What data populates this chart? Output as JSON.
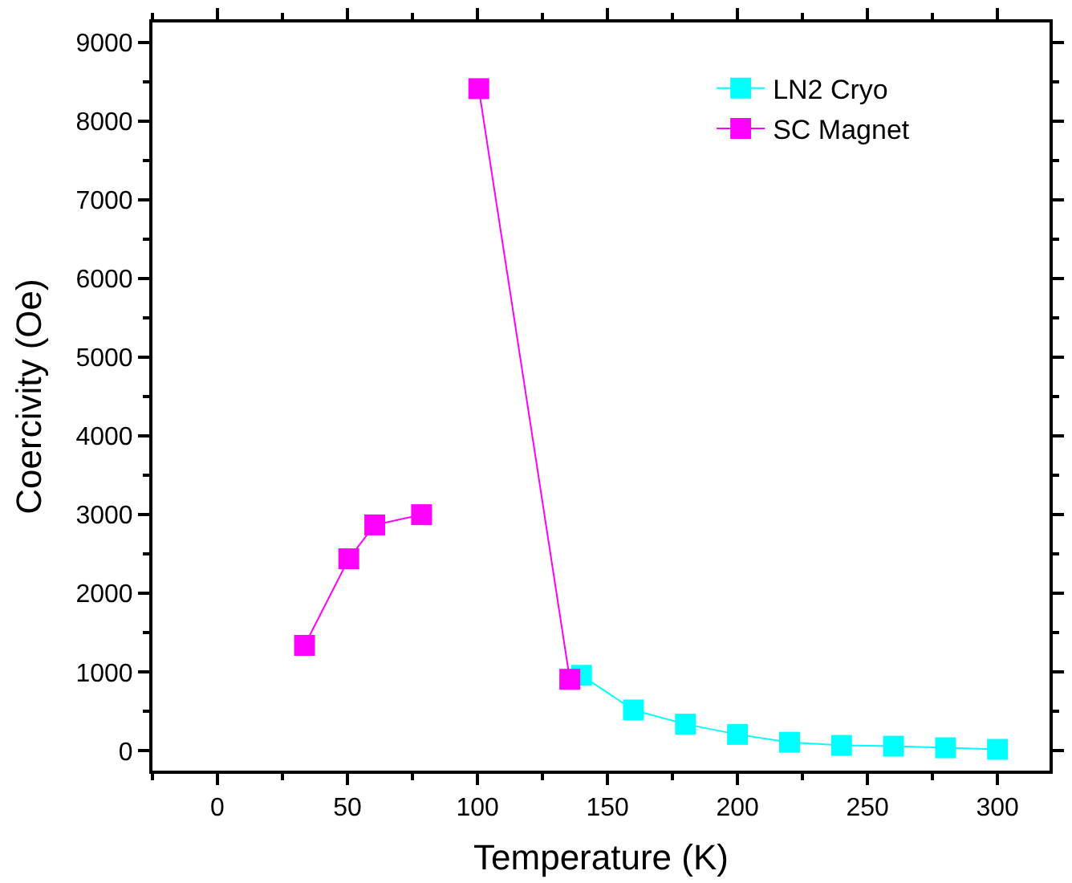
{
  "chart_data": {
    "type": "line",
    "xlabel": "Temperature (K)",
    "ylabel": "Coercivity (Oe)",
    "xlim": [
      -25,
      320
    ],
    "xticks": [
      0,
      50,
      100,
      150,
      200,
      250,
      300
    ],
    "ylim": [
      -250,
      9250
    ],
    "yticks": [
      0,
      1000,
      2000,
      3000,
      4000,
      5000,
      6000,
      7000,
      8000,
      9000
    ],
    "legend": "top right",
    "marker": "square",
    "line_style": "solid",
    "series": [
      {
        "name": "LN2 Cryo",
        "color": "#00ffff",
        "x": [
          140,
          160,
          180,
          200,
          220,
          240,
          260,
          280,
          300
        ],
        "values": [
          960,
          520,
          340,
          210,
          110,
          70,
          60,
          40,
          20
        ]
      },
      {
        "name": "SC Magnet",
        "color": "#ff00ff",
        "x": [
          33.5,
          50.5,
          60.5,
          78.5,
          null,
          100.5,
          135.5
        ],
        "values": [
          1340,
          2440,
          2870,
          3000,
          null,
          8410,
          910
        ]
      }
    ]
  }
}
